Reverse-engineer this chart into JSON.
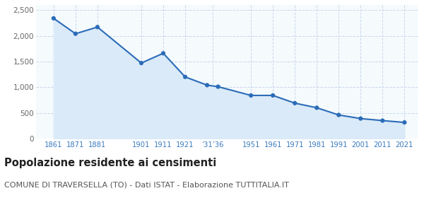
{
  "years": [
    1861,
    1871,
    1881,
    1901,
    1911,
    1921,
    1931,
    1936,
    1951,
    1961,
    1971,
    1981,
    1991,
    2001,
    2011,
    2021
  ],
  "values": [
    2340,
    2040,
    2170,
    1470,
    1660,
    1200,
    1040,
    1010,
    840,
    840,
    690,
    600,
    460,
    390,
    350,
    315
  ],
  "tick_positions": [
    1861,
    1871,
    1881,
    1901,
    1911,
    1921,
    1933.5,
    1951,
    1961,
    1971,
    1981,
    1991,
    2001,
    2011,
    2021
  ],
  "tick_labels": [
    "1861",
    "1871",
    "1881",
    "1901",
    "1911",
    "1921",
    "’31’36",
    "1951",
    "1961",
    "1971",
    "1981",
    "1991",
    "2001",
    "2011",
    "2021"
  ],
  "ylim": [
    0,
    2600
  ],
  "yticks": [
    0,
    500,
    1000,
    1500,
    2000,
    2500
  ],
  "line_color": "#2b6cb8",
  "fill_color": "#daeaf8",
  "marker_color": "#2b6cb8",
  "bg_color": "#f5fafd",
  "grid_color": "#c8d8e8",
  "title": "Popolazione residente ai censimenti",
  "subtitle": "COMUNE DI TRAVERSELLA (TO) - Dati ISTAT - Elaborazione TUTTITALIA.IT",
  "title_fontsize": 10.5,
  "subtitle_fontsize": 8,
  "tick_color": "#3a7abf",
  "ytick_color": "#666666"
}
